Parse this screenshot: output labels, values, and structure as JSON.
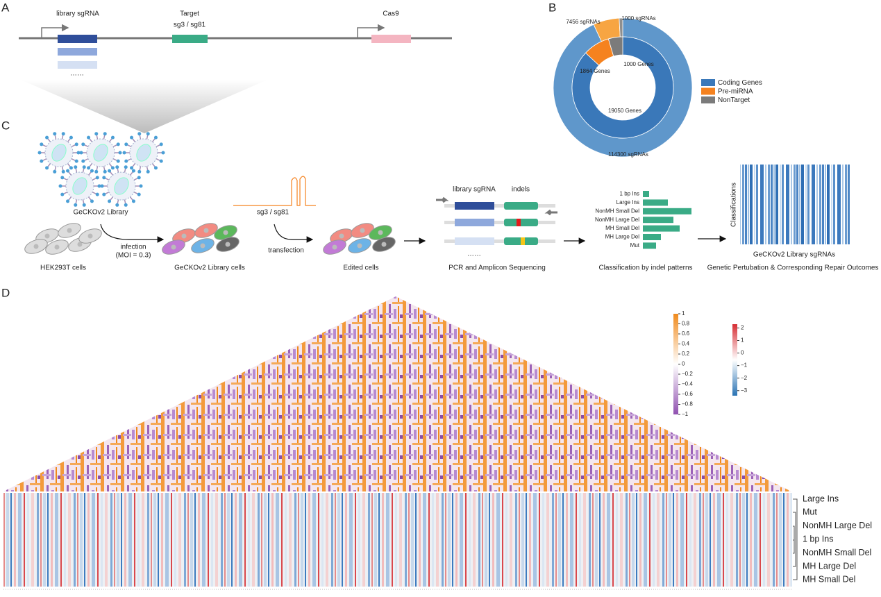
{
  "panel_labels": [
    "A",
    "B",
    "C",
    "D"
  ],
  "panel_a": {
    "library": "library sgRNA",
    "target": "Target",
    "target_guides": "sg3 / sg81",
    "cas9": "Cas9",
    "more": "……"
  },
  "panel_c": {
    "library": "GeCKOv2 Library",
    "hek": "HEK293T cells",
    "infection": "infection",
    "moi": "(MOI = 0.3)",
    "library_cells": "GeCKOv2 Library cells",
    "guides": "sg3 / sg81",
    "transfection": "transfection",
    "edited": "Edited cells",
    "seq_library": "library sgRNA",
    "indels": "indels",
    "more": "……",
    "pcr": "PCR and Amplicon Sequencing",
    "classification": "Classification by indel patterns",
    "classifications": "Classifications",
    "sgrnas": "GeCKOv2 Library sgRNAs",
    "outcomes": "Genetic Pertubation & Corresponding Repair Outcomes"
  },
  "chart_data": [
    {
      "type": "donut",
      "categories": [
        "Coding Genes",
        "Pre-miRNA",
        "NonTarget"
      ],
      "colors": [
        "#3a78b9",
        "#f5821f",
        "#7b7b7b"
      ],
      "series": [
        {
          "colors": [
            "#5f97cb",
            "#f7a542",
            "#8e8e8e"
          ],
          "values": [
            114300,
            7456,
            1000
          ],
          "value_labels": [
            "114300 sgRNAs",
            "7456 sgRNAs",
            "1000 sgRNAs"
          ]
        },
        {
          "colors": [
            "#3a78b9",
            "#f5821f",
            "#7b7b7b"
          ],
          "values": [
            19050,
            1864,
            1000
          ],
          "value_labels": [
            "19050 Genes",
            "1864 Genes",
            "1000 Genes"
          ]
        }
      ]
    },
    {
      "type": "bar",
      "color": "#3aab86",
      "categories": [
        "1 bp Ins",
        "Large Ins",
        "NonMH Small Del",
        "NonMH Large Del",
        "MH Small Del",
        "MH Large Del",
        "Mut"
      ],
      "values": [
        9,
        36,
        70,
        44,
        53,
        26,
        19
      ]
    },
    {
      "type": "colorbar",
      "colors": [
        "#f08a1c",
        "#ffffff",
        "#9050b0"
      ],
      "ylim": [
        -1,
        1
      ],
      "yticks": [
        1,
        0.8,
        0.6,
        0.4,
        0.2,
        0,
        {
          "value": -0.2,
          "label": "−0.2"
        },
        {
          "value": -0.4,
          "label": "−0.4"
        },
        {
          "value": -0.6,
          "label": "−0.6"
        },
        {
          "value": -0.8,
          "label": "−0.8"
        },
        {
          "value": -1,
          "label": "−1"
        }
      ]
    },
    {
      "type": "colorbar",
      "colors": [
        "#d62d33",
        "#ffffff",
        "#2a73b4"
      ],
      "ylim": [
        -3.4,
        2.3
      ],
      "yticks": [
        2,
        1,
        0,
        {
          "value": -1,
          "label": "−1"
        },
        {
          "value": -2,
          "label": "−2"
        },
        {
          "value": -3,
          "label": "−3"
        }
      ]
    }
  ],
  "panel_d": {
    "rows": [
      "Large Ins",
      "Mut",
      "NonMH Large Del",
      "1 bp Ins",
      "NonMH Small Del",
      "MH Large Del",
      "MH Small Del"
    ]
  }
}
